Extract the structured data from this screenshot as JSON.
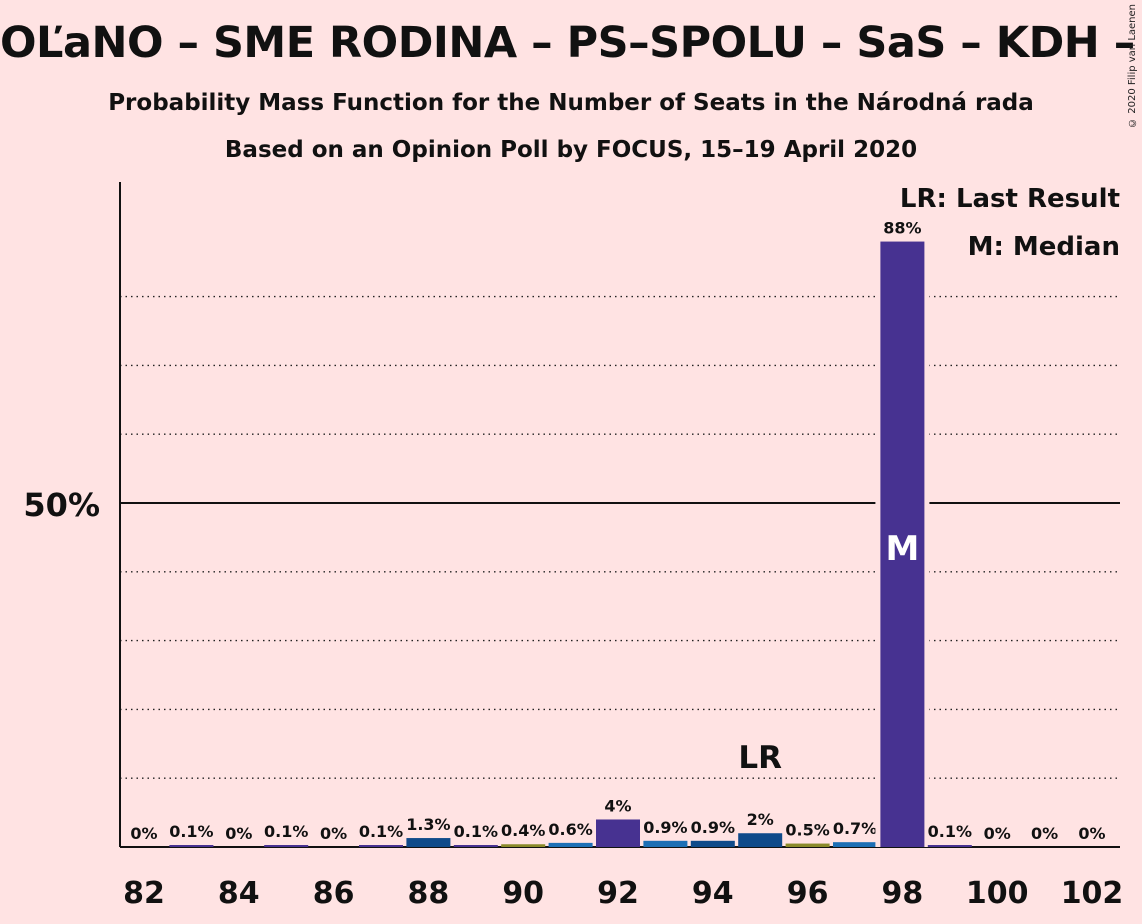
{
  "title": "OĽaNO – SME RODINA – PS–SPOLU – SaS – KDH – ZĽ",
  "subtitle_1": "Probability Mass Function for the Number of Seats in the Národná rada",
  "subtitle_2": "Based on an Opinion Poll by FOCUS, 15–19 April 2020",
  "copyright": "© 2020 Filip van Laenen",
  "legend": {
    "last_result": "LR: Last Result",
    "median": "M: Median"
  },
  "colors": {
    "background": "#ffe3e3",
    "bar_primary": "#473291",
    "bar_secondary": "#0f4a8a",
    "bar_tertiary": "#1d6fb5",
    "bar_olive": "#8a8a2a",
    "bar_label": "#111111",
    "median_text": "#ffffff"
  },
  "chart_data": {
    "type": "bar",
    "title": "OĽaNO – SME RODINA – PS–SPOLU – SaS – KDH – ZĽ",
    "x": [
      82,
      83,
      84,
      85,
      86,
      87,
      88,
      89,
      90,
      91,
      92,
      93,
      94,
      95,
      96,
      97,
      98,
      99,
      100,
      101,
      102
    ],
    "values": [
      0,
      0.1,
      0,
      0.1,
      0,
      0.1,
      1.3,
      0.1,
      0.4,
      0.6,
      4,
      0.9,
      0.9,
      2,
      0.5,
      0.7,
      88,
      0.1,
      0,
      0,
      0
    ],
    "labels": [
      "0%",
      "0.1%",
      "0%",
      "0.1%",
      "0%",
      "0.1%",
      "1.3%",
      "0.1%",
      "0.4%",
      "0.6%",
      "4%",
      "0.9%",
      "0.9%",
      "2%",
      "0.5%",
      "0.7%",
      "88%",
      "0.1%",
      "0%",
      "0%",
      "0%"
    ],
    "bar_colors": [
      "#473291",
      "#473291",
      "#473291",
      "#473291",
      "#473291",
      "#473291",
      "#0f4a8a",
      "#473291",
      "#8a8a2a",
      "#1d6fb5",
      "#473291",
      "#1d6fb5",
      "#0f4a8a",
      "#0f4a8a",
      "#8a8a2a",
      "#1d6fb5",
      "#473291",
      "#473291",
      "#473291",
      "#473291",
      "#473291"
    ],
    "xtick_values": [
      82,
      84,
      86,
      88,
      90,
      92,
      94,
      96,
      98,
      100,
      102
    ],
    "xtick_labels": [
      "82",
      "84",
      "86",
      "88",
      "90",
      "92",
      "94",
      "96",
      "98",
      "100",
      "102"
    ],
    "ytick_label": "50%",
    "ytick_value": 50,
    "ylim": [
      0,
      98
    ],
    "minor_gridlines": [
      10,
      20,
      30,
      40,
      60,
      70,
      80
    ],
    "last_result_seat": 95,
    "last_result_marker": "LR",
    "median_seat": 98,
    "median_marker": "M",
    "xlabel": "",
    "ylabel": "",
    "grid": true,
    "legend_position": "top-right"
  }
}
